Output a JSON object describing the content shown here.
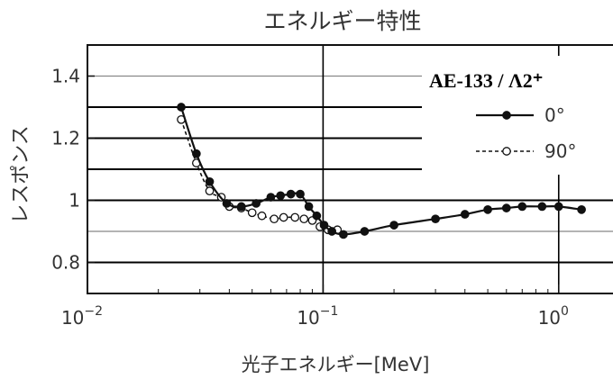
{
  "chart_data": {
    "type": "line",
    "title": "エネルギー特性",
    "xlabel": "光子エネルギー[MeV]",
    "ylabel": "レスポンス",
    "xscale": "log",
    "xlim": [
      0.01,
      1.7
    ],
    "ylim": [
      0.7,
      1.5
    ],
    "x_ticks": [
      {
        "value": 0.01,
        "base": "10",
        "exp": "−2"
      },
      {
        "value": 0.1,
        "base": "10",
        "exp": "−1"
      },
      {
        "value": 1,
        "base": "10",
        "exp": "0"
      }
    ],
    "y_ticks": [
      {
        "value": 0.8,
        "label": "0.8"
      },
      {
        "value": 1.0,
        "label": "1"
      },
      {
        "value": 1.2,
        "label": "1.2"
      },
      {
        "value": 1.4,
        "label": "1.4"
      }
    ],
    "legend": {
      "title": "AE-133 / Λ2⁺",
      "placement": "top-right"
    },
    "series": [
      {
        "name": "0°",
        "style": "solid-filled-circle",
        "x": [
          0.025,
          0.029,
          0.033,
          0.039,
          0.045,
          0.052,
          0.06,
          0.066,
          0.073,
          0.08,
          0.087,
          0.094,
          0.101,
          0.109,
          0.122,
          0.15,
          0.2,
          0.3,
          0.4,
          0.5,
          0.6,
          0.7,
          0.85,
          1.0,
          1.25
        ],
        "y": [
          1.3,
          1.15,
          1.06,
          0.99,
          0.98,
          0.99,
          1.01,
          1.015,
          1.02,
          1.02,
          0.98,
          0.95,
          0.92,
          0.9,
          0.89,
          0.9,
          0.92,
          0.94,
          0.955,
          0.97,
          0.975,
          0.98,
          0.98,
          0.98,
          0.97
        ]
      },
      {
        "name": "90°",
        "style": "dashed-open-circle",
        "x": [
          0.025,
          0.029,
          0.033,
          0.037,
          0.04,
          0.045,
          0.05,
          0.055,
          0.062,
          0.068,
          0.076,
          0.083,
          0.09,
          0.097,
          0.105,
          0.115
        ],
        "y": [
          1.26,
          1.12,
          1.03,
          1.01,
          0.98,
          0.975,
          0.96,
          0.95,
          0.94,
          0.945,
          0.945,
          0.94,
          0.935,
          0.915,
          0.905,
          0.905
        ]
      }
    ],
    "colors": {
      "line": "#111111",
      "grid": "#000000",
      "text": "#333333"
    }
  }
}
